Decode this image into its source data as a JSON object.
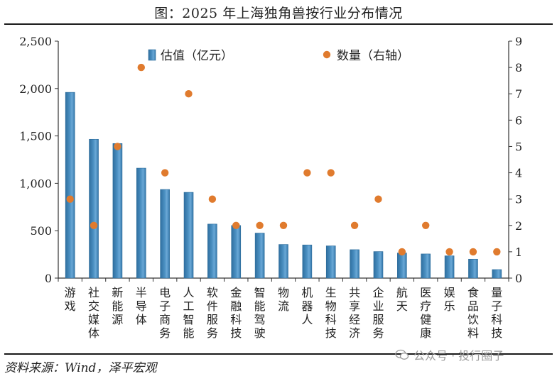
{
  "title": "图：2025 年上海独角兽按行业分布情况",
  "footer": "资料来源：Wind，泽平宏观",
  "watermark": "公众号 · 投行圈子",
  "colors": {
    "bar": "#4a8fc1",
    "bar_edge": "#2b6a99",
    "dot": "#e07b2e",
    "axis": "#333333"
  },
  "chart_data": {
    "type": "bar",
    "categories": [
      "游戏",
      "社交媒体",
      "新能源",
      "半导体",
      "电子商务",
      "人工智能",
      "软件服务",
      "金融科技",
      "智能驾驶",
      "物流",
      "机器人",
      "生物科技",
      "共享经济",
      "企业服务",
      "航天",
      "医疗健康",
      "娱乐",
      "食品饮料",
      "量子科技"
    ],
    "category_labels": [
      [
        "游",
        "戏"
      ],
      [
        "社",
        "交",
        "媒",
        "体"
      ],
      [
        "新",
        "能",
        "源"
      ],
      [
        "半",
        "导",
        "体"
      ],
      [
        "电",
        "子",
        "商",
        "务"
      ],
      [
        "人",
        "工",
        "智",
        "能"
      ],
      [
        "软",
        "件",
        "服",
        "务"
      ],
      [
        "金",
        "融",
        "科",
        "技"
      ],
      [
        "智",
        "能",
        "驾",
        "驶"
      ],
      [
        "物",
        "流"
      ],
      [
        "机",
        "器",
        "人"
      ],
      [
        "生",
        "物",
        "科",
        "技"
      ],
      [
        "共",
        "享",
        "经",
        "济"
      ],
      [
        "企",
        "业",
        "服",
        "务"
      ],
      [
        "航",
        "天"
      ],
      [
        "医",
        "疗",
        "健",
        "康"
      ],
      [
        "娱",
        "乐"
      ],
      [
        "食",
        "品",
        "饮",
        "料"
      ],
      [
        "量",
        "子",
        "科",
        "技"
      ]
    ],
    "series": [
      {
        "name": "估值（亿元）",
        "type": "bar",
        "axis": "left",
        "values": [
          1960,
          1465,
          1420,
          1160,
          935,
          905,
          570,
          555,
          475,
          355,
          350,
          340,
          300,
          280,
          265,
          255,
          235,
          200,
          90
        ]
      },
      {
        "name": "数量（右轴）",
        "type": "scatter",
        "axis": "right",
        "values": [
          3,
          2,
          5,
          8,
          4,
          7,
          3,
          2,
          2,
          2,
          4,
          4,
          2,
          3,
          1,
          2,
          1,
          1,
          1
        ]
      }
    ],
    "y_left": {
      "min": 0,
      "max": 2500,
      "ticks": [
        "0",
        "500",
        "1,000",
        "1,500",
        "2,000",
        "2,500"
      ]
    },
    "y_right": {
      "min": 0,
      "max": 9,
      "ticks": [
        "0",
        "1",
        "2",
        "3",
        "4",
        "5",
        "6",
        "7",
        "8",
        "9"
      ]
    },
    "legend_position": "top",
    "grid": false
  }
}
